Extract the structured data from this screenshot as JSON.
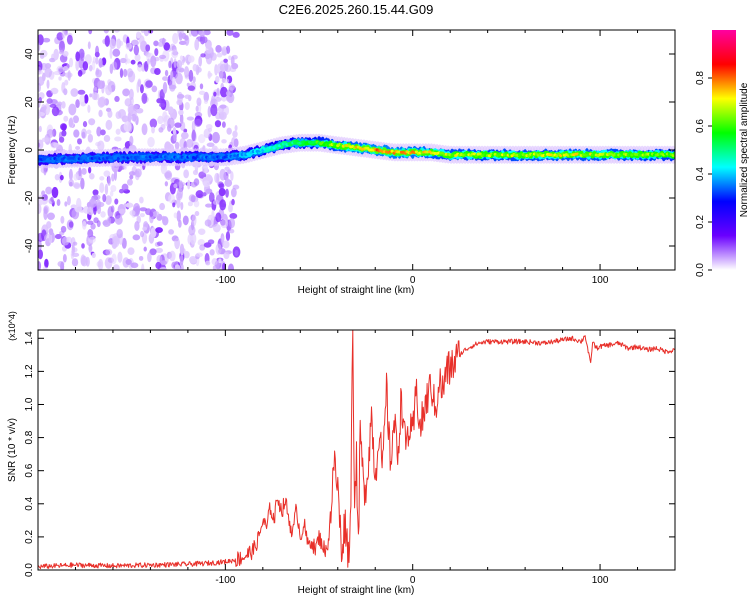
{
  "chart_data": [
    {
      "type": "heatmap",
      "title": "C2E6.2025.260.15.44.G09",
      "xlabel": "Height of straight line (km)",
      "ylabel": "Frequency (Hz)",
      "xlim": [
        -200,
        140
      ],
      "ylim": [
        -50,
        50
      ],
      "xticks": [
        -100,
        0,
        100
      ],
      "xtick_labels": [
        "-100",
        "0",
        "100"
      ],
      "yticks": [
        -40,
        -20,
        0,
        20,
        40
      ],
      "ytick_labels": [
        "-40",
        "-20",
        "0",
        "20",
        "40"
      ],
      "colorbar": {
        "label": "Normalized spectral amplitude",
        "range": [
          0,
          1
        ],
        "ticks": [
          0,
          0.2,
          0.4,
          0.6,
          0.8
        ],
        "tick_labels": [
          "0.0",
          "0.2",
          "0.4",
          "0.6",
          "0.8"
        ],
        "colormap": [
          "#ffffff",
          "#6a00ff",
          "#0000ff",
          "#00ffff",
          "#00ff00",
          "#ffff00",
          "#ff0000",
          "#ff00a0"
        ]
      },
      "ridge": {
        "x": [
          -200,
          -150,
          -110,
          -100,
          -90,
          -80,
          -70,
          -60,
          -50,
          -40,
          -30,
          -20,
          -10,
          0,
          10,
          20,
          40,
          60,
          80,
          100,
          120,
          140
        ],
        "freq": [
          -4,
          -3,
          -3,
          -3,
          -2,
          0,
          2,
          3,
          3,
          2,
          1,
          0,
          -1,
          -1,
          -1,
          -2,
          -2,
          -2,
          -2,
          -2,
          -2,
          -2
        ],
        "amplitude": [
          0.35,
          0.35,
          0.35,
          0.35,
          0.4,
          0.45,
          0.5,
          0.55,
          0.6,
          0.7,
          0.75,
          0.8,
          0.78,
          0.76,
          0.72,
          0.7,
          0.68,
          0.7,
          0.72,
          0.7,
          0.68,
          0.65
        ]
      },
      "noise_region_x": [
        -200,
        -100
      ]
    },
    {
      "type": "line",
      "xlabel": "Height of straight line (km)",
      "ylabel": "SNR (10 * v/v)",
      "y_scale_label": "(x10^4)",
      "xlim": [
        -200,
        140
      ],
      "ylim": [
        0,
        1.45
      ],
      "xticks": [
        -100,
        0,
        100
      ],
      "xtick_labels": [
        "-100",
        "0",
        "100"
      ],
      "yticks": [
        0,
        0.2,
        0.4,
        0.6,
        0.8,
        1.0,
        1.2,
        1.4
      ],
      "ytick_labels": [
        "0.0",
        "0.2",
        "0.4",
        "0.6",
        "0.8",
        "1.0",
        "1.2",
        "1.4"
      ],
      "line_color": "#e8302a",
      "series": [
        {
          "name": "SNR",
          "x": [
            -200,
            -180,
            -160,
            -140,
            -120,
            -110,
            -100,
            -95,
            -90,
            -85,
            -82,
            -80,
            -78,
            -76,
            -74,
            -72,
            -70,
            -68,
            -66,
            -64,
            -62,
            -60,
            -58,
            -56,
            -54,
            -52,
            -50,
            -48,
            -46,
            -44,
            -42,
            -40,
            -38,
            -36,
            -34,
            -33,
            -32,
            -31,
            -30,
            -29,
            -28,
            -26,
            -24,
            -22,
            -20,
            -18,
            -16,
            -14,
            -12,
            -10,
            -8,
            -6,
            -4,
            -2,
            0,
            2,
            4,
            6,
            8,
            10,
            12,
            14,
            16,
            18,
            20,
            22,
            25,
            28,
            31,
            35,
            40,
            50,
            60,
            70,
            80,
            85,
            90,
            92,
            94,
            95,
            96,
            98,
            100,
            105,
            110,
            115,
            120,
            125,
            130,
            135,
            140
          ],
          "values": [
            0.02,
            0.03,
            0.025,
            0.03,
            0.035,
            0.04,
            0.05,
            0.06,
            0.08,
            0.12,
            0.2,
            0.3,
            0.25,
            0.38,
            0.3,
            0.45,
            0.35,
            0.42,
            0.3,
            0.22,
            0.38,
            0.2,
            0.28,
            0.15,
            0.18,
            0.12,
            0.2,
            0.15,
            0.1,
            0.3,
            0.65,
            0.5,
            0.12,
            0.3,
            0.05,
            0.5,
            1.45,
            0.4,
            0.7,
            0.1,
            0.85,
            0.45,
            0.6,
            0.95,
            0.55,
            0.85,
            0.6,
            1.1,
            0.65,
            0.9,
            0.7,
            1.05,
            0.75,
            0.85,
            0.8,
            1.1,
            0.85,
            0.95,
            1.05,
            1.12,
            0.95,
            1.15,
            1.08,
            1.2,
            1.22,
            1.25,
            1.3,
            1.33,
            1.35,
            1.37,
            1.38,
            1.38,
            1.38,
            1.37,
            1.39,
            1.4,
            1.38,
            1.42,
            1.3,
            1.24,
            1.38,
            1.34,
            1.35,
            1.36,
            1.37,
            1.34,
            1.35,
            1.33,
            1.34,
            1.32,
            1.33
          ]
        }
      ]
    }
  ]
}
